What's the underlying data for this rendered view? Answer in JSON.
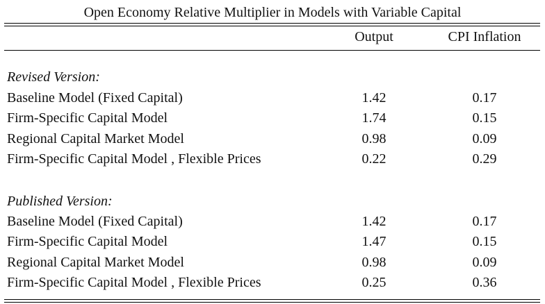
{
  "table": {
    "title": "Open Economy Relative Multiplier in Models with Variable Capital",
    "columns": [
      "Output",
      "CPI Inflation"
    ],
    "sections": [
      {
        "heading": "Revised Version:",
        "rows": [
          {
            "label": "Baseline Model (Fixed Capital)",
            "output": "1.42",
            "cpi": "0.17"
          },
          {
            "label": "Firm-Specific Capital Model",
            "output": "1.74",
            "cpi": "0.15"
          },
          {
            "label": "Regional Capital Market Model",
            "output": "0.98",
            "cpi": "0.09"
          },
          {
            "label": "Firm-Specific Capital Model , Flexible Prices",
            "output": "0.22",
            "cpi": "0.29"
          }
        ]
      },
      {
        "heading": "Published Version:",
        "rows": [
          {
            "label": "Baseline Model (Fixed Capital)",
            "output": "1.42",
            "cpi": "0.17"
          },
          {
            "label": "Firm-Specific Capital Model",
            "output": "1.47",
            "cpi": "0.15"
          },
          {
            "label": "Regional Capital Market Model",
            "output": "0.98",
            "cpi": "0.09"
          },
          {
            "label": "Firm-Specific Capital Model , Flexible Prices",
            "output": "0.25",
            "cpi": "0.36"
          }
        ]
      }
    ]
  }
}
